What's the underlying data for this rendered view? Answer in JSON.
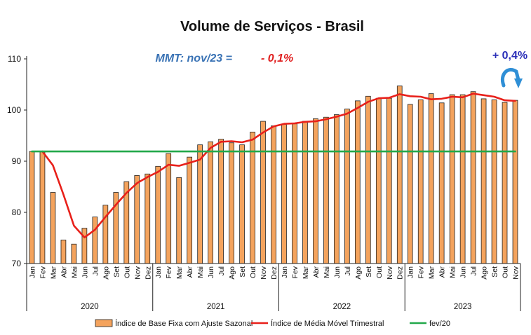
{
  "chart_data": {
    "type": "bar",
    "title": "Volume de Serviços - Brasil",
    "annotation": {
      "label": "MMT: nov/23 =",
      "value": "- 0,1%",
      "callout": "+ 0,4%"
    },
    "ylim": [
      70,
      110
    ],
    "yticks": [
      70,
      80,
      90,
      100,
      110
    ],
    "ytick_labels": [
      "70",
      "80",
      "90",
      "100",
      "110"
    ],
    "years": [
      {
        "label": "2020",
        "start": 0,
        "end": 11
      },
      {
        "label": "2021",
        "start": 12,
        "end": 23
      },
      {
        "label": "2022",
        "start": 24,
        "end": 35
      },
      {
        "label": "2023",
        "start": 36,
        "end": 46
      }
    ],
    "categories": [
      "Jan",
      "Fev",
      "Mar",
      "Abr",
      "Mai",
      "Jun",
      "Jul",
      "Ago",
      "Set",
      "Out",
      "Nov",
      "Dez",
      "Jan",
      "Fev",
      "Mar",
      "Abr",
      "Mai",
      "Jun",
      "Jul",
      "Ago",
      "Set",
      "Out",
      "Nov",
      "Dez",
      "Jan",
      "Fev",
      "Mar",
      "Abr",
      "Mai",
      "Jun",
      "Jul",
      "Ago",
      "Set",
      "Out",
      "Nov",
      "Dez",
      "Jan",
      "Fev",
      "Mar",
      "Abr",
      "Mai",
      "Jun",
      "Jul",
      "Ago",
      "Set",
      "Out",
      "Nov"
    ],
    "series": [
      {
        "name": "Índice de Base Fixa com Ajuste Sazonal",
        "kind": "bar",
        "color": "#f4a35d",
        "values": [
          91.9,
          91.9,
          83.9,
          74.6,
          73.8,
          76.9,
          79.1,
          81.4,
          83.9,
          86.0,
          87.2,
          87.5,
          89.0,
          91.5,
          86.8,
          90.8,
          93.2,
          93.8,
          94.3,
          93.6,
          93.2,
          95.7,
          97.8,
          96.9,
          97.2,
          97.3,
          97.8,
          98.3,
          98.6,
          99.1,
          100.2,
          101.8,
          102.7,
          102.3,
          102.3,
          104.7,
          101.1,
          102.0,
          103.2,
          101.4,
          103.0,
          103.0,
          103.6,
          102.2,
          102.0,
          101.5,
          101.9
        ]
      },
      {
        "name": "Índice de Média Móvel Trimestral",
        "kind": "line",
        "color": "#e8201a",
        "values": [
          null,
          91.9,
          89.2,
          83.5,
          77.4,
          75.1,
          76.6,
          79.1,
          81.5,
          83.8,
          85.7,
          86.9,
          87.9,
          89.3,
          89.1,
          89.7,
          90.3,
          92.6,
          93.8,
          93.9,
          93.7,
          94.2,
          95.6,
          96.8,
          97.3,
          97.4,
          97.7,
          97.8,
          98.2,
          98.7,
          99.3,
          100.4,
          101.6,
          102.3,
          102.4,
          103.1,
          102.7,
          102.6,
          102.1,
          102.2,
          102.6,
          102.5,
          103.2,
          102.9,
          102.6,
          101.9,
          101.8
        ]
      },
      {
        "name": "fev/20",
        "kind": "line",
        "color": "#22a84a",
        "values": [
          91.9,
          91.9,
          91.9,
          91.9,
          91.9,
          91.9,
          91.9,
          91.9,
          91.9,
          91.9,
          91.9,
          91.9,
          91.9,
          91.9,
          91.9,
          91.9,
          91.9,
          91.9,
          91.9,
          91.9,
          91.9,
          91.9,
          91.9,
          91.9,
          91.9,
          91.9,
          91.9,
          91.9,
          91.9,
          91.9,
          91.9,
          91.9,
          91.9,
          91.9,
          91.9,
          91.9,
          91.9,
          91.9,
          91.9,
          91.9,
          91.9,
          91.9,
          91.9,
          91.9,
          91.9,
          91.9,
          91.9
        ]
      }
    ],
    "legend": {
      "position": "bottom",
      "entries": [
        {
          "label": "Índice de Base Fixa com Ajuste Sazonal",
          "kind": "bar",
          "color": "#f4a35d"
        },
        {
          "label": "Índice de Média Móvel Trimestral",
          "kind": "line",
          "color": "#e8201a"
        },
        {
          "label": "fev/20",
          "kind": "line",
          "color": "#22a84a"
        }
      ]
    },
    "colors": {
      "bar_outline": "#222222",
      "callout_arrow": "#2f8fd6",
      "axis": "#222222"
    }
  }
}
